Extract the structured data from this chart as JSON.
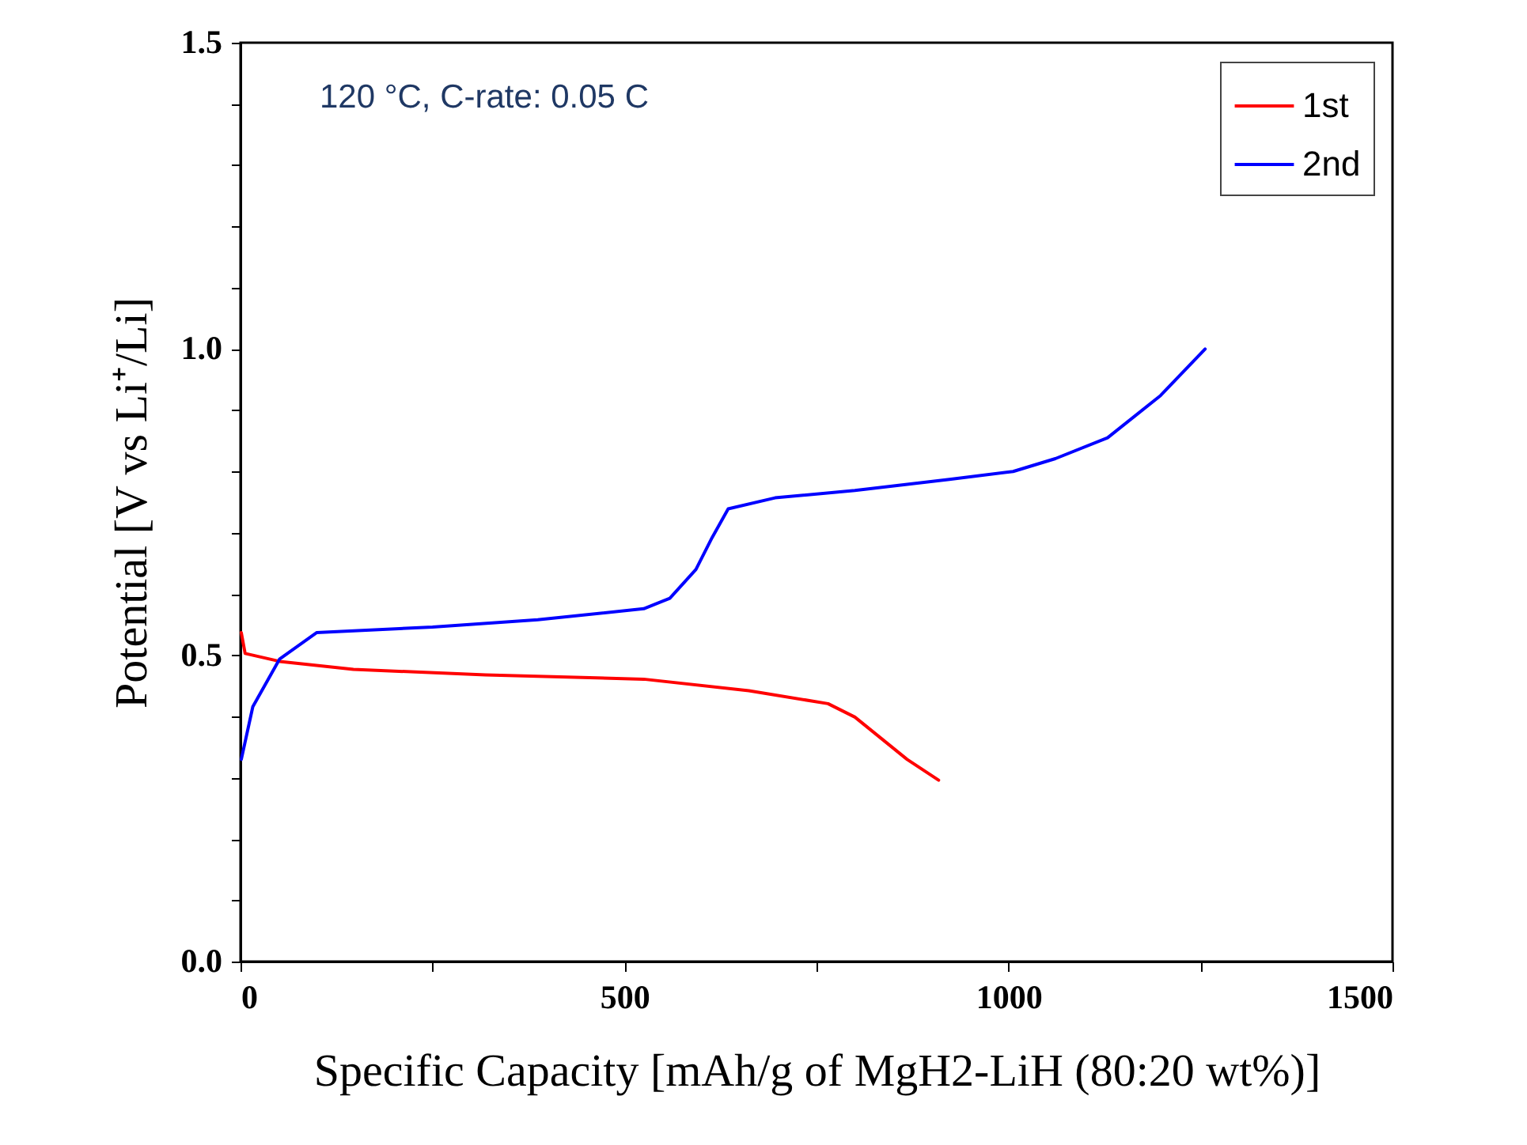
{
  "chart_data": {
    "type": "line",
    "xlabel": "Specific Capacity [mAh/g of MgH2-LiH (80:20 wt%)]",
    "ylabel": "Potential [V vs Li⁺/Li]",
    "annotations": [
      "120 °C, C-rate: 0.05 C"
    ],
    "xlim": [
      0,
      1500
    ],
    "xticks": [
      0,
      {
        "value": 250,
        "label": null
      },
      500,
      {
        "value": 750,
        "label": null
      },
      1000,
      {
        "value": 1250,
        "label": null
      },
      1500
    ],
    "ylim": [
      0,
      1.5
    ],
    "yticks": [
      {
        "value": 0,
        "label": "0.0"
      },
      {
        "value": 0.1,
        "label": null
      },
      {
        "value": 0.2,
        "label": null
      },
      {
        "value": 0.3,
        "label": null
      },
      {
        "value": 0.4,
        "label": null
      },
      {
        "value": 0.5,
        "label": "0.5"
      },
      {
        "value": 0.6,
        "label": null
      },
      {
        "value": 0.7,
        "label": null
      },
      {
        "value": 0.8,
        "label": null
      },
      {
        "value": 0.9,
        "label": null
      },
      {
        "value": 1.0,
        "label": "1.0"
      },
      {
        "value": 1.1,
        "label": null
      },
      {
        "value": 1.2,
        "label": null
      },
      {
        "value": 1.3,
        "label": null
      },
      {
        "value": 1.4,
        "label": null
      },
      {
        "value": 1.5,
        "label": "1.5"
      }
    ],
    "grid": false,
    "legend": "top right",
    "line_style": "solid",
    "series": [
      {
        "name": "1st",
        "color": "#ff0000",
        "x": [
          1,
          6,
          51,
          147,
          319,
          525,
          662,
          765,
          800,
          868,
          909
        ],
        "values": [
          0.537,
          0.503,
          0.49,
          0.477,
          0.468,
          0.461,
          0.442,
          0.421,
          0.399,
          0.33,
          0.296
        ]
      },
      {
        "name": "2nd",
        "color": "#0000ff",
        "x": [
          1,
          16,
          51,
          99,
          250,
          387,
          525,
          559,
          593,
          614,
          635,
          696,
          800,
          923,
          1006,
          1061,
          1129,
          1198,
          1256
        ],
        "values": [
          0.33,
          0.416,
          0.494,
          0.537,
          0.546,
          0.558,
          0.576,
          0.593,
          0.64,
          0.692,
          0.739,
          0.757,
          0.769,
          0.787,
          0.8,
          0.821,
          0.855,
          0.924,
          1.0
        ]
      }
    ]
  }
}
